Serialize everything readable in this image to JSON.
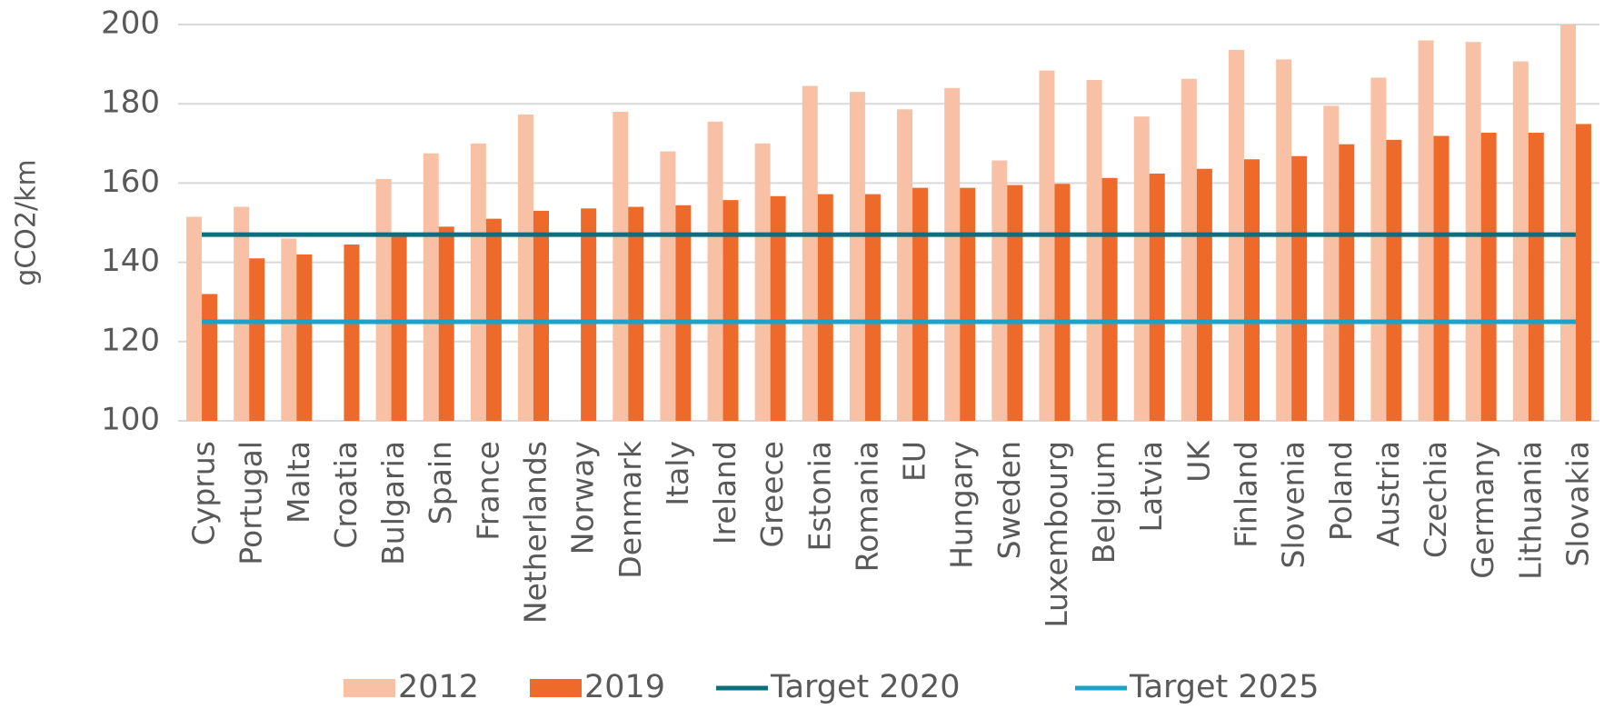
{
  "chart_data": {
    "type": "bar",
    "y_label": "gCO2/km",
    "categories": [
      "Cyprus",
      "Portugal",
      "Malta",
      "Croatia",
      "Bulgaria",
      "Spain",
      "France",
      "Netherlands",
      "Norway",
      "Denmark",
      "Italy",
      "Ireland",
      "Greece",
      "Estonia",
      "Romania",
      "EU",
      "Hungary",
      "Sweden",
      "Luxembourg",
      "Belgium",
      "Latvia",
      "UK",
      "Finland",
      "Slovenia",
      "Poland",
      "Austria",
      "Czechia",
      "Germany",
      "Lithuania",
      "Slovakia"
    ],
    "series": [
      {
        "name": "2012",
        "type": "bar",
        "color": "#f8c0a4",
        "values": [
          151.5,
          154,
          146,
          100,
          161,
          167.5,
          170,
          177.3,
          100,
          178,
          168,
          175.5,
          170,
          184.5,
          183,
          178.6,
          184,
          165.7,
          188.4,
          186,
          176.8,
          186.3,
          193.6,
          191.2,
          179.5,
          186.6,
          196,
          195.6,
          190.7,
          200
        ]
      },
      {
        "name": "2019",
        "type": "bar",
        "color": "#ee6a2b",
        "values": [
          132,
          141,
          142,
          144.5,
          147.5,
          149,
          151,
          153,
          153.6,
          154,
          154.4,
          155.7,
          156.7,
          157.2,
          157.2,
          158.8,
          158.8,
          159.5,
          159.8,
          161.3,
          162.4,
          163.6,
          166,
          166.8,
          169.8,
          170.9,
          171.9,
          172.7,
          172.7,
          174.9
        ]
      },
      {
        "name": "Target 2020",
        "type": "line",
        "color": "#0e6e7e",
        "values": [
          147,
          147,
          147,
          147,
          147,
          147,
          147,
          147,
          147,
          147,
          147,
          147,
          147,
          147,
          147,
          147,
          147,
          147,
          147,
          147,
          147,
          147,
          147,
          147,
          147,
          147,
          147,
          147,
          147,
          147
        ]
      },
      {
        "name": "Target 2025",
        "type": "line",
        "color": "#1aa3c8",
        "values": [
          125,
          125,
          125,
          125,
          125,
          125,
          125,
          125,
          125,
          125,
          125,
          125,
          125,
          125,
          125,
          125,
          125,
          125,
          125,
          125,
          125,
          125,
          125,
          125,
          125,
          125,
          125,
          125,
          125,
          125
        ]
      }
    ],
    "ylim": [
      100,
      200
    ],
    "yticks": [
      100,
      120,
      140,
      160,
      180,
      200
    ],
    "grid": true,
    "legend": "bottom"
  }
}
